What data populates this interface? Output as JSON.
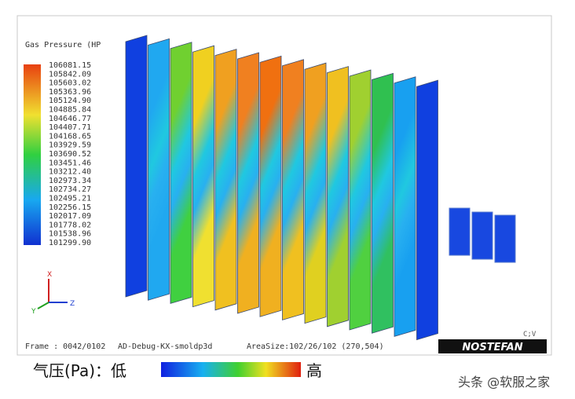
{
  "legend": {
    "title": "Gas Pressure (HP",
    "labels": [
      "106081.15",
      "105842.09",
      "105603.02",
      "105363.96",
      "105124.90",
      "104885.84",
      "104646.77",
      "104407.71",
      "104168.65",
      "103929.59",
      "103690.52",
      "103451.46",
      "103212.40",
      "102973.34",
      "102734.27",
      "102495.21",
      "102256.15",
      "102017.09",
      "101778.02",
      "101538.96",
      "101299.90"
    ]
  },
  "axes": {
    "x": "X",
    "y": "Y",
    "z": "Z"
  },
  "status": {
    "frame": "Frame : 0042/0102",
    "job": "AD-Debug-KX-smoldp3d",
    "area": "AreaSize:102/26/102 (270,504)",
    "corner": "C;V",
    "logo": "NOSTEFAN"
  },
  "caption": {
    "label": "气压(Pa)：低",
    "high": "高"
  },
  "watermark": "头条 @软服之家"
}
